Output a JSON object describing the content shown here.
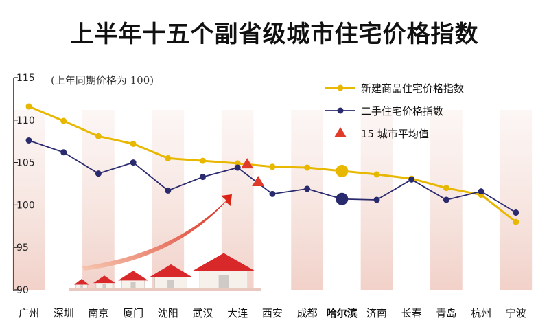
{
  "title": "上半年十五个副省级城市住宅价格指数",
  "chart_data": {
    "type": "line",
    "title": "上半年十五个副省级城市住宅价格指数",
    "unit_note": "(上年同期价格为 100)",
    "categories": [
      "广州",
      "深圳",
      "南京",
      "厦门",
      "沈阳",
      "武汉",
      "大连",
      "西安",
      "成都",
      "哈尔滨",
      "济南",
      "长春",
      "青岛",
      "杭州",
      "宁波"
    ],
    "highlight_category": "哈尔滨",
    "ylim": [
      90,
      115
    ],
    "yticks": [
      "115",
      "110",
      "105",
      "100",
      "95",
      "90"
    ],
    "ytick_values": [
      115,
      110,
      105,
      100,
      95,
      90
    ],
    "series": [
      {
        "name": "新建商品住宅价格指数",
        "color": "#e8b800",
        "values": [
          111.6,
          109.9,
          108.1,
          107.2,
          105.5,
          105.2,
          104.9,
          104.5,
          104.4,
          104.0,
          103.6,
          103.1,
          102.0,
          101.2,
          98.0
        ]
      },
      {
        "name": "二手住宅价格指数",
        "color": "#2a2a6e",
        "values": [
          107.6,
          106.2,
          103.7,
          105.0,
          101.7,
          103.3,
          104.4,
          101.3,
          101.9,
          100.7,
          100.6,
          103.0,
          100.6,
          101.6,
          99.1
        ]
      }
    ],
    "averages": {
      "name": "15 城市平均值",
      "color": "#e03a2a",
      "new_value": 104.8,
      "second_hand_value": 102.7
    },
    "grid": false,
    "legend_position": "top-right"
  }
}
